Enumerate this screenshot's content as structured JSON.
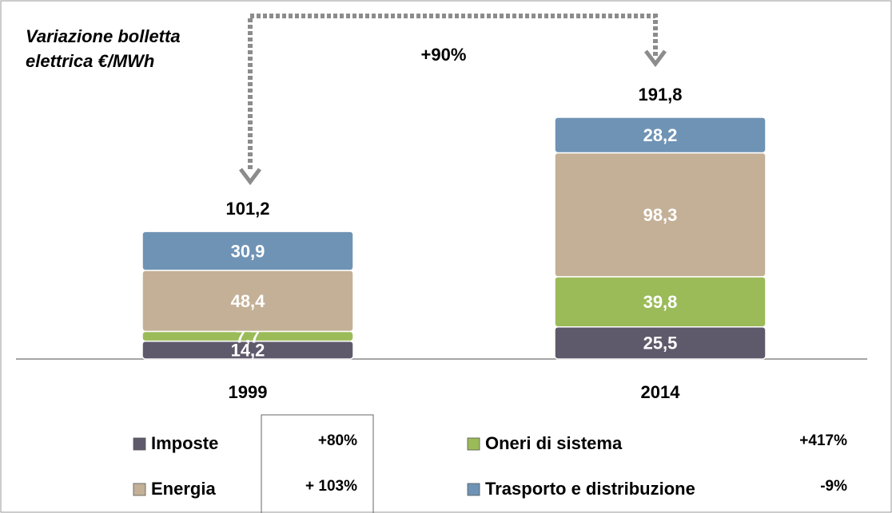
{
  "chart_data": {
    "type": "stacked-bar",
    "title": "Variazione bolletta elettrica €/MWh",
    "annotation": "+90%",
    "categories": [
      "1999",
      "2014"
    ],
    "totals": [
      101.2,
      191.8
    ],
    "total_labels": [
      "101,2",
      "191,8"
    ],
    "series": [
      {
        "name": "Imposte",
        "color": "#5f5a6b",
        "values": [
          14.2,
          25.5
        ],
        "value_labels": [
          "14,2",
          "25,5"
        ],
        "change": "+80%"
      },
      {
        "name": "Oneri di sistema",
        "color": "#9bbb59",
        "values": [
          7.7,
          39.8
        ],
        "value_labels": [
          "7,7",
          "39,8"
        ],
        "change": "+417%"
      },
      {
        "name": "Energia",
        "color": "#c4b096",
        "values": [
          48.4,
          98.3
        ],
        "value_labels": [
          "48,4",
          "98,3"
        ],
        "change": "+ 103%"
      },
      {
        "name": "Trasporto e distribuzione",
        "color": "#6f93b5",
        "values": [
          30.9,
          28.2
        ],
        "value_labels": [
          "30,9",
          "28,2"
        ],
        "change": "-9%"
      }
    ]
  }
}
